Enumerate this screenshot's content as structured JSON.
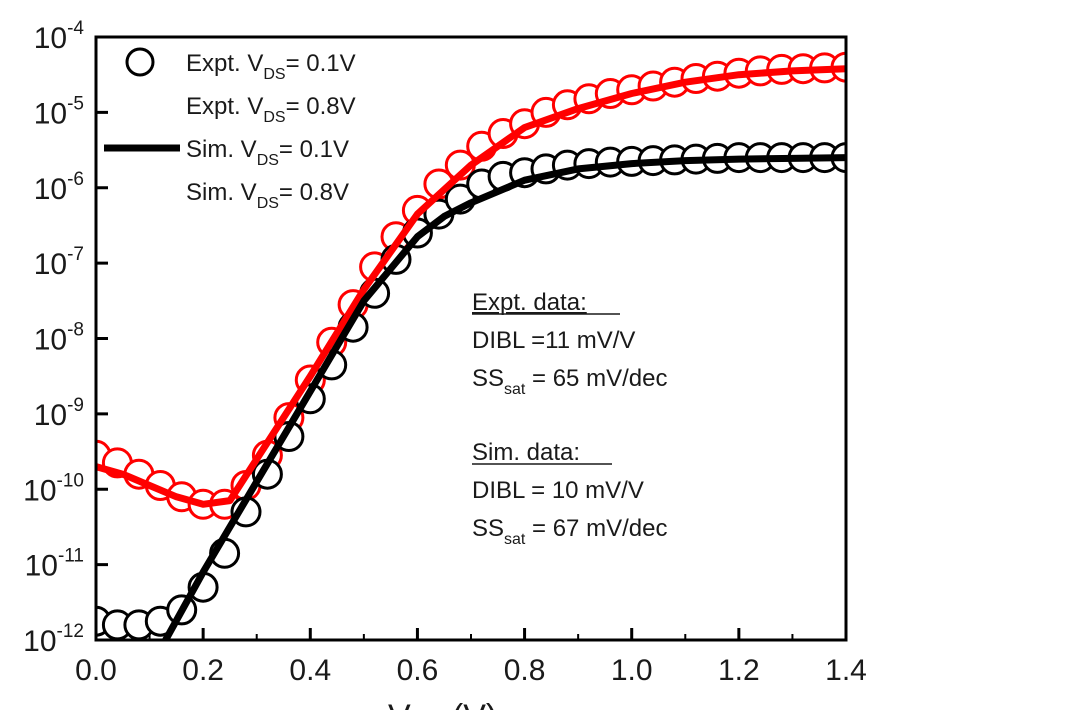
{
  "chart_data": {
    "type": "scatter",
    "title": "",
    "xlabel": "V",
    "xlabel_sub": "GS",
    "xlabel_unit": " (V)",
    "ylabel": "",
    "xlim": [
      0.0,
      1.4
    ],
    "ylim_log10": [
      -12,
      -4
    ],
    "y_scale": "log",
    "x_ticks": [
      "0.0",
      "0.2",
      "0.4",
      "0.6",
      "0.8",
      "1.0",
      "1.2",
      "1.4"
    ],
    "x_tick_values": [
      0.0,
      0.2,
      0.4,
      0.6,
      0.8,
      1.0,
      1.2,
      1.4
    ],
    "y_ticks": [
      {
        "base": "10",
        "exp": "-4",
        "log": -4
      },
      {
        "base": "10",
        "exp": "-5",
        "log": -5
      },
      {
        "base": "10",
        "exp": "-6",
        "log": -6
      },
      {
        "base": "10",
        "exp": "-7",
        "log": -7
      },
      {
        "base": "10",
        "exp": "-8",
        "log": -8
      },
      {
        "base": "10",
        "exp": "-9",
        "log": -9
      },
      {
        "base": "10",
        "exp": "-10",
        "log": -10
      },
      {
        "base": "10",
        "exp": "-11",
        "log": -11
      },
      {
        "base": "10",
        "exp": "-12",
        "log": -12
      }
    ],
    "legend_position": "top-left",
    "legend": [
      {
        "pre": "Expt. V",
        "sub": "DS",
        "post": "= 0.1V",
        "marker": "circle",
        "color": "#000000"
      },
      {
        "pre": "Expt. V",
        "sub": "DS",
        "post": "= 0.8V",
        "marker": "circle",
        "color": "#ff0000"
      },
      {
        "pre": "Sim. V",
        "sub": "DS",
        "post": "= 0.1V",
        "marker": "line",
        "color": "#000000"
      },
      {
        "pre": "Sim. V",
        "sub": "DS",
        "post": "= 0.8V",
        "marker": "line",
        "color": "#ff0000"
      }
    ],
    "series": [
      {
        "name": "Expt. VDS= 0.1V",
        "kind": "markers",
        "color": "#000000",
        "x": [
          0.0,
          0.04,
          0.08,
          0.12,
          0.16,
          0.2,
          0.24,
          0.28,
          0.32,
          0.36,
          0.4,
          0.44,
          0.48,
          0.52,
          0.56,
          0.6,
          0.64,
          0.68,
          0.72,
          0.76,
          0.8,
          0.84,
          0.88,
          0.92,
          0.96,
          1.0,
          1.04,
          1.08,
          1.12,
          1.16,
          1.2,
          1.24,
          1.28,
          1.32,
          1.36,
          1.4
        ],
        "log10_y": [
          -11.75,
          -11.8,
          -11.8,
          -11.75,
          -11.6,
          -11.3,
          -10.85,
          -10.3,
          -9.8,
          -9.3,
          -8.8,
          -8.35,
          -7.85,
          -7.4,
          -6.95,
          -6.6,
          -6.35,
          -6.15,
          -5.95,
          -5.85,
          -5.8,
          -5.75,
          -5.7,
          -5.68,
          -5.66,
          -5.65,
          -5.64,
          -5.63,
          -5.62,
          -5.61,
          -5.6,
          -5.6,
          -5.6,
          -5.6,
          -5.6,
          -5.6
        ]
      },
      {
        "name": "Expt. VDS= 0.8V",
        "kind": "markers",
        "color": "#ff0000",
        "x": [
          0.0,
          0.04,
          0.08,
          0.12,
          0.16,
          0.2,
          0.24,
          0.28,
          0.32,
          0.36,
          0.4,
          0.44,
          0.48,
          0.52,
          0.56,
          0.6,
          0.64,
          0.68,
          0.72,
          0.76,
          0.8,
          0.84,
          0.88,
          0.92,
          0.96,
          1.0,
          1.04,
          1.08,
          1.12,
          1.16,
          1.2,
          1.24,
          1.28,
          1.32,
          1.36,
          1.4
        ],
        "log10_y": [
          -9.55,
          -9.65,
          -9.8,
          -9.95,
          -10.1,
          -10.2,
          -10.2,
          -9.95,
          -9.55,
          -9.05,
          -8.55,
          -8.05,
          -7.55,
          -7.05,
          -6.65,
          -6.3,
          -5.95,
          -5.7,
          -5.45,
          -5.28,
          -5.15,
          -5.0,
          -4.9,
          -4.82,
          -4.75,
          -4.7,
          -4.65,
          -4.6,
          -4.55,
          -4.52,
          -4.48,
          -4.45,
          -4.43,
          -4.42,
          -4.41,
          -4.4
        ]
      },
      {
        "name": "Sim. VDS= 0.1V",
        "kind": "line",
        "color": "#000000",
        "x": [
          0.13,
          0.2,
          0.3,
          0.4,
          0.5,
          0.6,
          0.65,
          0.7,
          0.8,
          0.9,
          1.0,
          1.1,
          1.2,
          1.3,
          1.4
        ],
        "log10_y": [
          -12.0,
          -11.1,
          -9.9,
          -8.7,
          -7.5,
          -6.65,
          -6.38,
          -6.2,
          -5.9,
          -5.75,
          -5.68,
          -5.64,
          -5.62,
          -5.61,
          -5.6
        ]
      },
      {
        "name": "Sim. VDS= 0.8V",
        "kind": "line",
        "color": "#ff0000",
        "x": [
          0.0,
          0.05,
          0.1,
          0.15,
          0.2,
          0.25,
          0.3,
          0.35,
          0.4,
          0.5,
          0.6,
          0.7,
          0.8,
          0.9,
          1.0,
          1.1,
          1.2,
          1.3,
          1.4
        ],
        "log10_y": [
          -9.7,
          -9.8,
          -9.95,
          -10.1,
          -10.2,
          -10.15,
          -9.6,
          -9.05,
          -8.5,
          -7.35,
          -6.35,
          -5.7,
          -5.2,
          -4.95,
          -4.75,
          -4.6,
          -4.5,
          -4.45,
          -4.42
        ]
      }
    ],
    "annotations": {
      "expt_header": "Expt. data:",
      "expt_dibl": "DIBL =11 mV/V",
      "expt_ss_pre": "SS",
      "expt_ss_sub": "sat",
      "expt_ss_post": " = 65 mV/dec",
      "sim_header": "Sim. data:",
      "sim_dibl": "DIBL = 10 mV/V",
      "sim_ss_pre": "SS",
      "sim_ss_sub": "sat",
      "sim_ss_post": " = 67 mV/dec"
    }
  }
}
